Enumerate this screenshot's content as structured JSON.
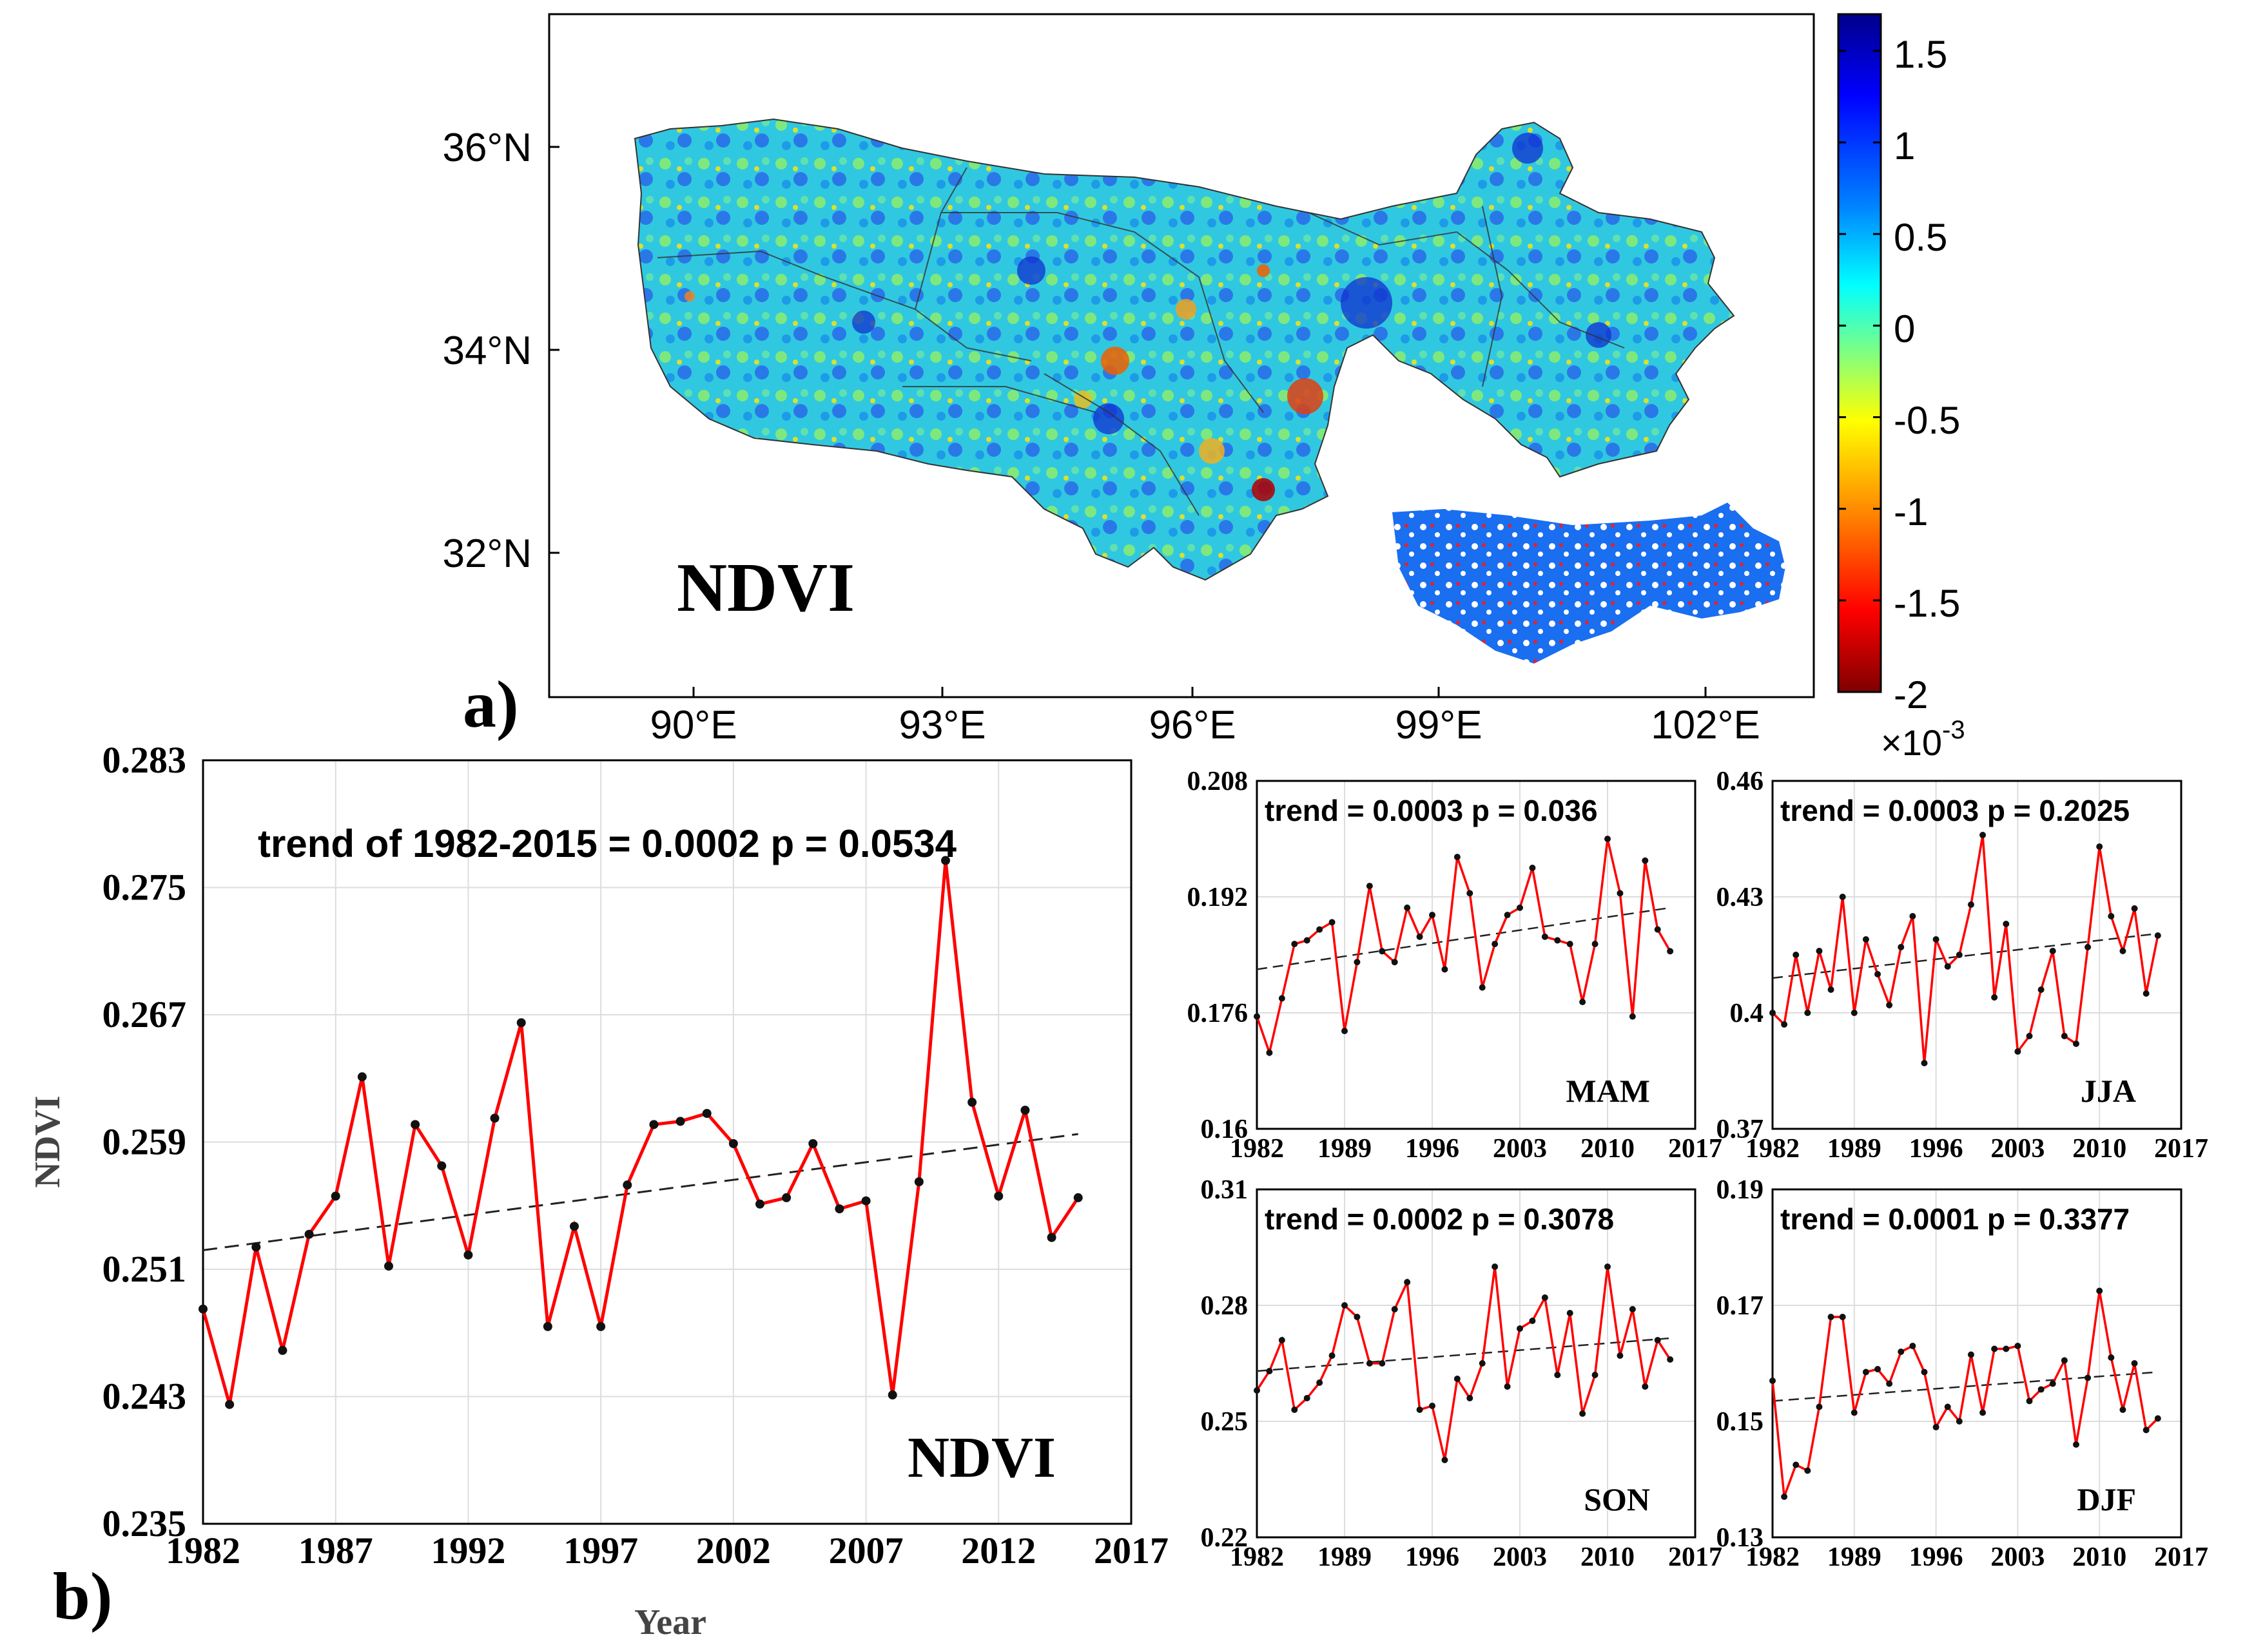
{
  "panel_a": {
    "label": "a)",
    "map_label": "NDVI",
    "lat_ticks": [
      "36°N",
      "34°N",
      "32°N"
    ],
    "lon_ticks": [
      "90°E",
      "93°E",
      "96°E",
      "99°E",
      "102°E"
    ],
    "colorbar": {
      "ticks": [
        "1.5",
        "1",
        "0.5",
        "0",
        "-0.5",
        "-1",
        "-1.5",
        "-2"
      ],
      "multiplier": "×10",
      "exponent": "-3",
      "range": [
        -2,
        1.7
      ],
      "colors": [
        "#7f0000",
        "#ff0000",
        "#ff8c00",
        "#ffff00",
        "#80ff80",
        "#00ffff",
        "#0080ff",
        "#0000ff",
        "#00008b"
      ]
    }
  },
  "panel_b": {
    "label": "b)",
    "main": {
      "type": "line",
      "title_text": "trend of 1982-2015 = 0.0002 p = 0.0534",
      "series_label": "NDVI",
      "xlabel": "Year",
      "ylabel": "NDVI",
      "xlim": [
        1982,
        2017
      ],
      "ylim": [
        0.235,
        0.283
      ],
      "xticks": [
        "1982",
        "1987",
        "1992",
        "1997",
        "2002",
        "2007",
        "2012",
        "2017"
      ],
      "yticks": [
        "0.283",
        "0.275",
        "0.267",
        "0.259",
        "0.251",
        "0.243",
        "0.235"
      ]
    },
    "seasons": [
      {
        "name": "MAM",
        "title_text": "trend = 0.0003 p = 0.036",
        "ylim": [
          0.16,
          0.208
        ],
        "yticks": [
          "0.208",
          "0.192",
          "0.176",
          "0.16"
        ],
        "xticks": [
          "1982",
          "1989",
          "1996",
          "2003",
          "2010",
          "2017"
        ]
      },
      {
        "name": "JJA",
        "title_text": "trend = 0.0003 p = 0.2025",
        "ylim": [
          0.37,
          0.46
        ],
        "yticks": [
          "0.46",
          "0.43",
          "0.4",
          "0.37"
        ],
        "xticks": [
          "1982",
          "1989",
          "1996",
          "2003",
          "2010",
          "2017"
        ]
      },
      {
        "name": "SON",
        "title_text": "trend = 0.0002 p = 0.3078",
        "ylim": [
          0.22,
          0.31
        ],
        "yticks": [
          "0.31",
          "0.28",
          "0.25",
          "0.22"
        ],
        "xticks": [
          "1982",
          "1989",
          "1996",
          "2003",
          "2010",
          "2017"
        ]
      },
      {
        "name": "DJF",
        "title_text": "trend = 0.0001 p = 0.3377",
        "ylim": [
          0.13,
          0.19
        ],
        "yticks": [
          "0.19",
          "0.17",
          "0.15",
          "0.13"
        ],
        "xticks": [
          "1982",
          "1989",
          "1996",
          "2003",
          "2010",
          "2017"
        ]
      }
    ]
  },
  "chart_data": [
    {
      "type": "line",
      "name": "annual NDVI",
      "x": [
        1982,
        1983,
        1984,
        1985,
        1986,
        1987,
        1988,
        1989,
        1990,
        1991,
        1992,
        1993,
        1994,
        1995,
        1996,
        1997,
        1998,
        1999,
        2000,
        2001,
        2002,
        2003,
        2004,
        2005,
        2006,
        2007,
        2008,
        2009,
        2010,
        2011,
        2012,
        2013,
        2014,
        2015
      ],
      "values": [
        0.2485,
        0.2425,
        0.2524,
        0.2459,
        0.2532,
        0.2556,
        0.2631,
        0.2512,
        0.2601,
        0.2575,
        0.2519,
        0.2605,
        0.2665,
        0.2474,
        0.2537,
        0.2474,
        0.2563,
        0.2601,
        0.2603,
        0.2608,
        0.2589,
        0.2551,
        0.2555,
        0.2589,
        0.2548,
        0.2553,
        0.2431,
        0.2565,
        0.2767,
        0.2615,
        0.2556,
        0.261,
        0.253,
        0.2555
      ],
      "trend": {
        "start": [
          1982,
          0.2522
        ],
        "end": [
          2015,
          0.2595
        ]
      },
      "xlim": [
        1982,
        2017
      ],
      "ylim": [
        0.235,
        0.283
      ]
    },
    {
      "type": "line",
      "name": "MAM",
      "x": [
        1982,
        1983,
        1984,
        1985,
        1986,
        1987,
        1988,
        1989,
        1990,
        1991,
        1992,
        1993,
        1994,
        1995,
        1996,
        1997,
        1998,
        1999,
        2000,
        2001,
        2002,
        2003,
        2004,
        2005,
        2006,
        2007,
        2008,
        2009,
        2010,
        2011,
        2012,
        2013,
        2014,
        2015
      ],
      "values": [
        0.1755,
        0.1705,
        0.178,
        0.1855,
        0.186,
        0.1875,
        0.1885,
        0.1735,
        0.183,
        0.1935,
        0.1845,
        0.183,
        0.1905,
        0.1865,
        0.1895,
        0.182,
        0.1975,
        0.1925,
        0.1795,
        0.1855,
        0.1895,
        0.1905,
        0.196,
        0.1865,
        0.186,
        0.1855,
        0.1775,
        0.1855,
        0.2,
        0.1925,
        0.1755,
        0.197,
        0.1875,
        0.1845
      ],
      "trend": {
        "start": [
          1982,
          0.182
        ],
        "end": [
          2015,
          0.1905
        ]
      },
      "xlim": [
        1982,
        2017
      ],
      "ylim": [
        0.16,
        0.208
      ]
    },
    {
      "type": "line",
      "name": "JJA",
      "x": [
        1982,
        1983,
        1984,
        1985,
        1986,
        1987,
        1988,
        1989,
        1990,
        1991,
        1992,
        1993,
        1994,
        1995,
        1996,
        1997,
        1998,
        1999,
        2000,
        2001,
        2002,
        2003,
        2004,
        2005,
        2006,
        2007,
        2008,
        2009,
        2010,
        2011,
        2012,
        2013,
        2014,
        2015
      ],
      "values": [
        0.4,
        0.397,
        0.415,
        0.4,
        0.416,
        0.406,
        0.43,
        0.4,
        0.419,
        0.41,
        0.402,
        0.417,
        0.425,
        0.387,
        0.419,
        0.412,
        0.415,
        0.428,
        0.446,
        0.404,
        0.423,
        0.39,
        0.394,
        0.406,
        0.416,
        0.394,
        0.392,
        0.417,
        0.443,
        0.425,
        0.416,
        0.427,
        0.405,
        0.42
      ],
      "trend": {
        "start": [
          1982,
          0.409
        ],
        "end": [
          2015,
          0.4205
        ]
      },
      "xlim": [
        1982,
        2017
      ],
      "ylim": [
        0.37,
        0.46
      ]
    },
    {
      "type": "line",
      "name": "SON",
      "x": [
        1982,
        1983,
        1984,
        1985,
        1986,
        1987,
        1988,
        1989,
        1990,
        1991,
        1992,
        1993,
        1994,
        1995,
        1996,
        1997,
        1998,
        1999,
        2000,
        2001,
        2002,
        2003,
        2004,
        2005,
        2006,
        2007,
        2008,
        2009,
        2010,
        2011,
        2012,
        2013,
        2014,
        2015
      ],
      "values": [
        0.258,
        0.263,
        0.271,
        0.253,
        0.256,
        0.26,
        0.267,
        0.28,
        0.277,
        0.265,
        0.265,
        0.279,
        0.286,
        0.253,
        0.254,
        0.24,
        0.261,
        0.256,
        0.265,
        0.29,
        0.259,
        0.274,
        0.276,
        0.282,
        0.262,
        0.278,
        0.252,
        0.262,
        0.29,
        0.267,
        0.279,
        0.259,
        0.271,
        0.266
      ],
      "trend": {
        "start": [
          1982,
          0.263
        ],
        "end": [
          2015,
          0.2715
        ]
      },
      "xlim": [
        1982,
        2017
      ],
      "ylim": [
        0.22,
        0.31
      ]
    },
    {
      "type": "line",
      "name": "DJF",
      "x": [
        1982,
        1983,
        1984,
        1985,
        1986,
        1987,
        1988,
        1989,
        1990,
        1991,
        1992,
        1993,
        1994,
        1995,
        1996,
        1997,
        1998,
        1999,
        2000,
        2001,
        2002,
        2003,
        2004,
        2005,
        2006,
        2007,
        2008,
        2009,
        2010,
        2011,
        2012,
        2013,
        2014,
        2015
      ],
      "values": [
        0.157,
        0.137,
        0.1425,
        0.1415,
        0.1525,
        0.168,
        0.168,
        0.1515,
        0.1585,
        0.159,
        0.1565,
        0.162,
        0.163,
        0.1585,
        0.149,
        0.1525,
        0.15,
        0.1615,
        0.1515,
        0.1625,
        0.1625,
        0.163,
        0.1535,
        0.1555,
        0.1565,
        0.1605,
        0.146,
        0.1575,
        0.1725,
        0.161,
        0.152,
        0.16,
        0.1485,
        0.1505
      ],
      "trend": {
        "start": [
          1982,
          0.1535
        ],
        "end": [
          2015,
          0.1585
        ]
      },
      "xlim": [
        1982,
        2017
      ],
      "ylim": [
        0.13,
        0.19
      ]
    }
  ]
}
